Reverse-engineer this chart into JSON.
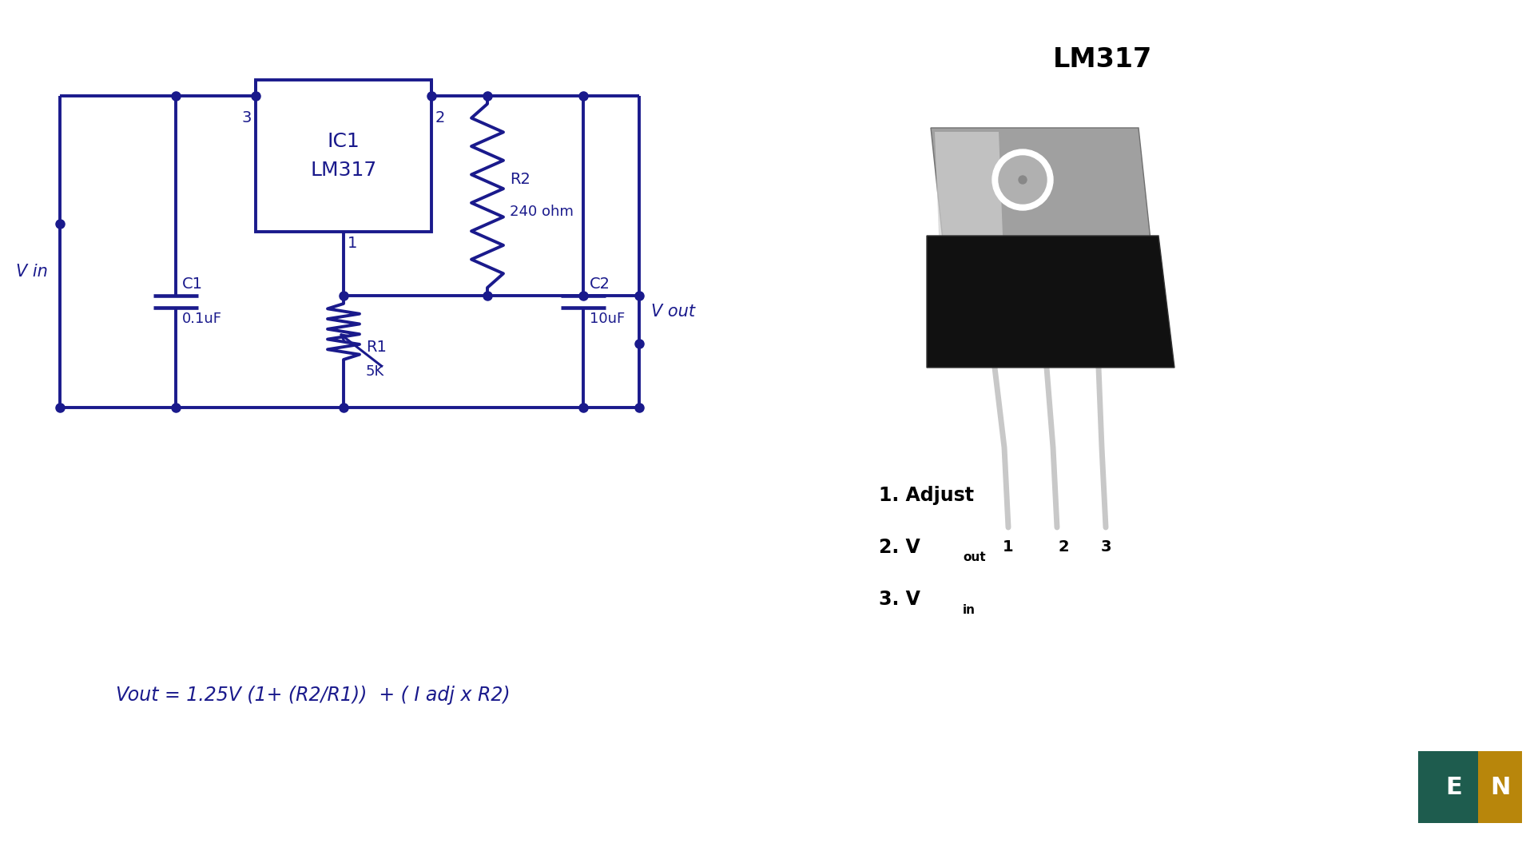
{
  "bg_color": "#ffffff",
  "circuit_color": "#1a1a8c",
  "title_color": "#000000",
  "lm317_title": "LM317",
  "ic_label1": "IC1",
  "ic_label2": "LM317",
  "formula": "Vout = 1.25V (1+ (R2/R1))  + ( I adj x R2)",
  "r1_label1": "R1",
  "r1_label2": "5K",
  "r2_label1": "R2",
  "r2_label2": "240 ohm",
  "c1_label1": "C1",
  "c1_label2": "0.1uF",
  "c2_label1": "C2",
  "c2_label2": "10uF",
  "vin_label": "V in",
  "vout_label": "V out",
  "pin_num_3": "3",
  "pin_num_2": "2",
  "pin_num_1": "1",
  "legend_1": "1. Adjust",
  "legend_2a": "2. V",
  "legend_2b": "out",
  "legend_3a": "3. V",
  "legend_3b": "in"
}
